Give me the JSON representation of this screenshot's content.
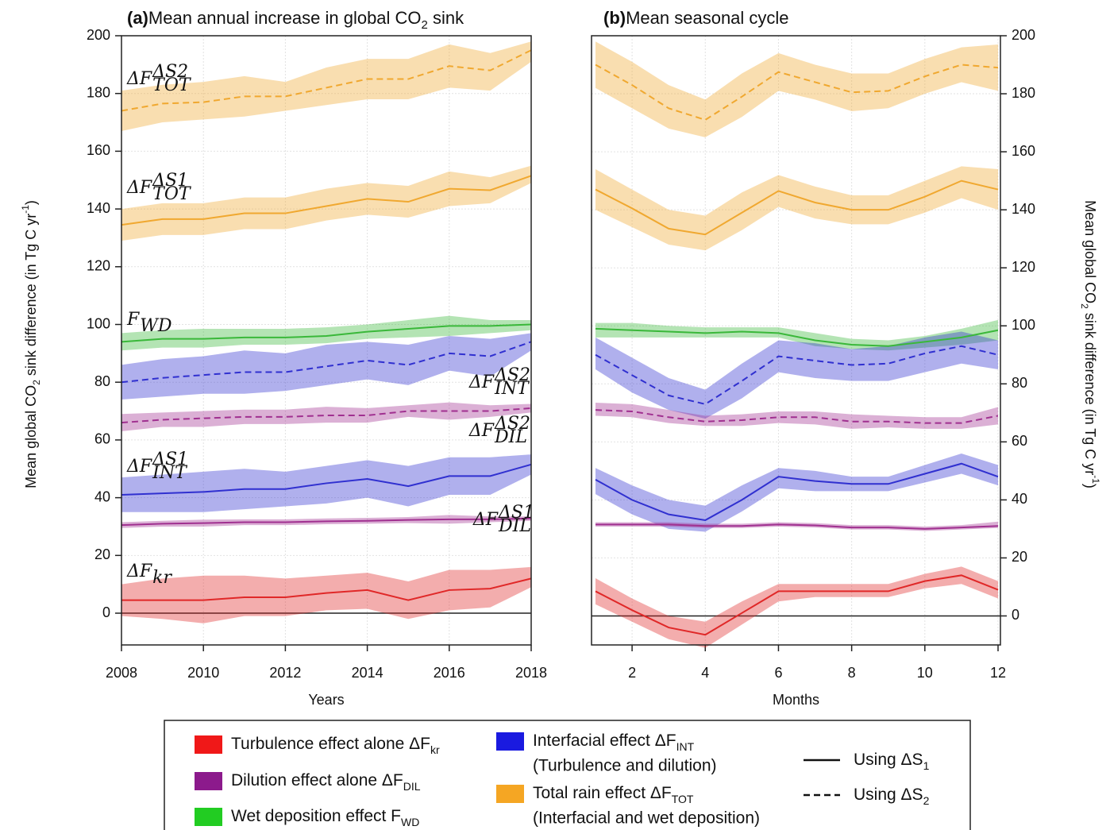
{
  "chart_data": [
    {
      "type": "line",
      "title": {
        "tag": "(a)",
        "text": "Mean annual increase in global CO",
        "sub": "2",
        "after": " sink"
      },
      "xlabel": "Years",
      "ylabel": {
        "text": "Mean global CO",
        "sub": "2",
        "mid": " sink difference (in Tg C yr",
        "sup": "-1",
        "after": ")"
      },
      "yaxis_side": "left",
      "grid": true,
      "x": [
        2008,
        2009,
        2010,
        2011,
        2012,
        2013,
        2014,
        2015,
        2016,
        2017,
        2018
      ],
      "xlim": [
        2008,
        2018
      ],
      "xticks": [
        2008,
        2010,
        2012,
        2014,
        2016,
        2018
      ],
      "ylim": [
        -11,
        200
      ],
      "yticks": [
        0,
        20,
        40,
        60,
        80,
        100,
        120,
        140,
        160,
        180,
        200
      ],
      "series": [
        {
          "label": {
            "main": "ΔF",
            "sup": "ΔS2",
            "sub": "TOT"
          },
          "color": "#f0a830",
          "dashed": true,
          "values": [
            174,
            176.5,
            177,
            179,
            179,
            182,
            185,
            185,
            189.5,
            188,
            195
          ],
          "lower": [
            167,
            170,
            171,
            172,
            174,
            176,
            178,
            178,
            182,
            181,
            191
          ],
          "upper": [
            181,
            183,
            184,
            186,
            184,
            189,
            192,
            192,
            197,
            194,
            198
          ]
        },
        {
          "label": {
            "main": "ΔF",
            "sup": "ΔS1",
            "sub": "TOT"
          },
          "color": "#f0a830",
          "dashed": false,
          "values": [
            134.5,
            136.5,
            136.5,
            138.5,
            138.5,
            141,
            143.5,
            142.5,
            147,
            146.5,
            151.5
          ],
          "lower": [
            129,
            131,
            131,
            133,
            133,
            136,
            138,
            137,
            141,
            142,
            149
          ],
          "upper": [
            140,
            142,
            142,
            144,
            144,
            147,
            149,
            148,
            153,
            151,
            155
          ]
        },
        {
          "label": {
            "main": "F",
            "sub": "WD"
          },
          "color": "#3ab83a",
          "dashed": false,
          "values": [
            94,
            95,
            95,
            95.5,
            95.5,
            96,
            97.5,
            98.5,
            99.5,
            99.5,
            100
          ],
          "lower": [
            91,
            92,
            92,
            93,
            93,
            93.5,
            95,
            95.5,
            96,
            97,
            98
          ],
          "upper": [
            97,
            98,
            98.5,
            98.5,
            98.5,
            99,
            100,
            101.5,
            103,
            101.5,
            101.5
          ]
        },
        {
          "label": {
            "main": "ΔF",
            "sup": "ΔS2",
            "sub": "INT"
          },
          "color": "#3030d0",
          "dashed": true,
          "values": [
            80,
            81.5,
            82.5,
            83.5,
            83.5,
            85.5,
            87.5,
            86,
            90,
            89,
            94
          ],
          "lower": [
            74,
            75,
            76,
            76,
            77,
            79,
            81,
            79,
            84,
            82,
            91
          ],
          "upper": [
            86,
            88,
            89,
            91,
            90,
            93,
            94,
            93,
            96,
            95,
            97
          ]
        },
        {
          "label": {
            "main": "ΔF",
            "sup": "ΔS2",
            "sub": "DIL"
          },
          "color": "#a03090",
          "dashed": true,
          "values": [
            66,
            67,
            67.5,
            68,
            68,
            68.5,
            68.5,
            70,
            70,
            70,
            71
          ],
          "lower": [
            63,
            64.5,
            64.5,
            65.5,
            65.5,
            66,
            66,
            68,
            67,
            68,
            69.5
          ],
          "upper": [
            69,
            69.5,
            70,
            70.5,
            70.5,
            71.5,
            71,
            72,
            73,
            72,
            72.5
          ]
        },
        {
          "label": {
            "main": "ΔF",
            "sup": "ΔS1",
            "sub": "INT"
          },
          "color": "#3030d0",
          "dashed": false,
          "values": [
            41,
            41.5,
            42,
            43,
            43,
            45,
            46.5,
            44,
            47.5,
            47.5,
            51.5
          ],
          "lower": [
            35,
            35,
            35,
            36,
            37,
            38,
            40,
            37,
            41,
            41,
            48
          ],
          "upper": [
            47,
            48,
            49,
            50,
            49,
            51,
            53,
            51,
            54,
            54,
            55
          ]
        },
        {
          "label": {
            "main": "ΔF",
            "sup": "ΔS1",
            "sub": "DIL"
          },
          "color": "#a03090",
          "dashed": false,
          "values": [
            30.5,
            31,
            31.2,
            31.5,
            31.5,
            31.8,
            32,
            32.3,
            32.5,
            32.5,
            32.8
          ],
          "lower": [
            29.5,
            30,
            30,
            30.5,
            30.5,
            30.8,
            31,
            31.2,
            31,
            31.5,
            32
          ],
          "upper": [
            31.5,
            32,
            32.4,
            32.5,
            32.5,
            32.8,
            33,
            33.3,
            34,
            33.5,
            33.5
          ]
        },
        {
          "label": {
            "main": "ΔF",
            "sub": "kr"
          },
          "color": "#e02828",
          "dashed": false,
          "values": [
            4.5,
            4.5,
            4.5,
            5.5,
            5.5,
            7,
            8,
            4.5,
            8,
            8.5,
            12
          ],
          "lower": [
            -1,
            -2,
            -3.5,
            -1,
            -1,
            1,
            1.5,
            -2,
            1,
            2,
            9
          ],
          "upper": [
            10,
            12,
            13,
            13,
            12,
            13,
            14,
            11,
            15,
            15,
            16
          ]
        }
      ]
    },
    {
      "type": "line",
      "title": {
        "tag": "(b)",
        "text": "Mean seasonal cycle"
      },
      "xlabel": "Months",
      "ylabel": {
        "text": "Mean global CO",
        "sub": "2",
        "mid": " sink difference (in Tg C yr",
        "sup": "-1",
        "after": ")"
      },
      "yaxis_side": "right",
      "grid": true,
      "x": [
        1,
        2,
        3,
        4,
        5,
        6,
        7,
        8,
        9,
        10,
        11,
        12
      ],
      "xlim": [
        1,
        12
      ],
      "xticks": [
        2,
        4,
        6,
        8,
        10,
        12
      ],
      "ylim": [
        -10,
        200
      ],
      "yticks": [
        0,
        20,
        40,
        60,
        80,
        100,
        120,
        140,
        160,
        180,
        200
      ],
      "series": [
        {
          "color": "#f0a830",
          "dashed": true,
          "values": [
            190,
            183,
            175,
            171,
            179,
            187.5,
            184,
            180.5,
            181,
            186,
            190,
            189
          ],
          "lower": [
            182,
            175,
            168,
            165,
            172,
            181,
            178,
            174,
            175,
            180,
            184,
            181
          ],
          "upper": [
            198,
            191,
            183,
            178,
            187,
            194,
            190,
            187,
            187,
            192,
            196,
            197
          ]
        },
        {
          "color": "#f0a830",
          "dashed": false,
          "values": [
            147,
            140.5,
            133.5,
            131.5,
            139,
            146.5,
            142.5,
            140,
            140,
            144.5,
            150,
            147
          ],
          "lower": [
            140,
            134,
            128,
            126,
            133,
            141,
            137,
            135,
            135,
            139,
            144,
            140
          ],
          "upper": [
            154,
            147,
            140,
            138,
            146,
            152,
            148,
            145,
            145,
            150,
            155,
            154
          ]
        },
        {
          "color": "#3ab83a",
          "dashed": false,
          "values": [
            99,
            98.5,
            98,
            97.5,
            98,
            97.5,
            95,
            93.5,
            93,
            94.5,
            96,
            98.5
          ],
          "lower": [
            96,
            96,
            96,
            96,
            96,
            96,
            93,
            92,
            91.5,
            92.5,
            93.5,
            95
          ],
          "upper": [
            101,
            101,
            100,
            99.5,
            99.5,
            99.5,
            97.5,
            95.5,
            95,
            96.5,
            99,
            102
          ]
        },
        {
          "color": "#3030d0",
          "dashed": true,
          "values": [
            90,
            83,
            76,
            73,
            81,
            89.5,
            88,
            86.5,
            87,
            90.5,
            93,
            90
          ],
          "lower": [
            85,
            77,
            71,
            68,
            75,
            84,
            82,
            81,
            81,
            84,
            87,
            85
          ],
          "upper": [
            96,
            89,
            82,
            78,
            87,
            95,
            94,
            92,
            93,
            96,
            98,
            95
          ]
        },
        {
          "color": "#a03090",
          "dashed": true,
          "values": [
            71,
            70.5,
            68.5,
            67,
            67.5,
            68.5,
            68.5,
            67,
            67,
            66.5,
            66.5,
            69
          ],
          "lower": [
            69,
            68.5,
            66.5,
            65.5,
            65.5,
            66.5,
            66,
            64.5,
            65,
            64.5,
            64.5,
            66
          ],
          "upper": [
            73.5,
            73,
            71,
            69,
            69.5,
            70.5,
            70.5,
            69.5,
            69,
            68.5,
            68.5,
            72
          ]
        },
        {
          "color": "#3030d0",
          "dashed": false,
          "values": [
            47,
            40,
            35,
            33,
            40,
            48,
            46.5,
            45.5,
            45.5,
            49,
            52.5,
            48
          ],
          "lower": [
            42,
            35,
            30,
            29,
            36,
            44,
            43,
            43,
            43,
            46,
            49,
            45
          ],
          "upper": [
            51,
            45,
            40,
            38,
            45,
            51,
            50,
            48,
            48,
            52,
            56,
            52
          ]
        },
        {
          "color": "#a03090",
          "dashed": false,
          "values": [
            31.5,
            31.5,
            31.5,
            31,
            31,
            31.5,
            31.2,
            30.5,
            30.5,
            30,
            30.5,
            31
          ],
          "lower": [
            30.8,
            30.8,
            30.8,
            30.3,
            30.3,
            30.8,
            30.5,
            29.8,
            29.8,
            29.3,
            29.8,
            30.3
          ],
          "upper": [
            32.3,
            32.3,
            32.3,
            31.8,
            31.8,
            32.3,
            32,
            31.3,
            31.3,
            30.8,
            31.3,
            32.5
          ]
        },
        {
          "color": "#e02828",
          "dashed": false,
          "values": [
            8.5,
            2,
            -4,
            -6.5,
            1,
            8.5,
            8.5,
            8.5,
            8.5,
            12,
            14,
            9
          ],
          "lower": [
            4,
            -2,
            -8,
            -11,
            -3,
            5,
            6.5,
            6.5,
            6.5,
            9.5,
            11,
            6
          ],
          "upper": [
            13,
            6,
            0,
            -2,
            5,
            11,
            11,
            11,
            11,
            14.5,
            17,
            12
          ]
        }
      ]
    }
  ],
  "legend": {
    "effects": [
      {
        "text": "Turbulence effect alone ΔF",
        "sub": "kr",
        "color": "#f01818"
      },
      {
        "text": "Dilution effect alone ΔF",
        "sub": "DIL",
        "color": "#8c1a8c"
      },
      {
        "text": "Wet deposition effect F",
        "sub": "WD",
        "color": "#22cc22"
      },
      {
        "text": "Interfacial effect ΔF",
        "sub": "INT",
        "note": "(Turbulence and dilution)",
        "color": "#1a1ae0"
      },
      {
        "text": "Total rain effect ΔF",
        "sub": "TOT",
        "note": "(Interfacial and wet deposition)",
        "color": "#f5a623"
      }
    ],
    "styles": [
      {
        "text": "Using ΔS",
        "sub": "1",
        "dashed": false
      },
      {
        "text": "Using ΔS",
        "sub": "2",
        "dashed": true
      }
    ]
  }
}
